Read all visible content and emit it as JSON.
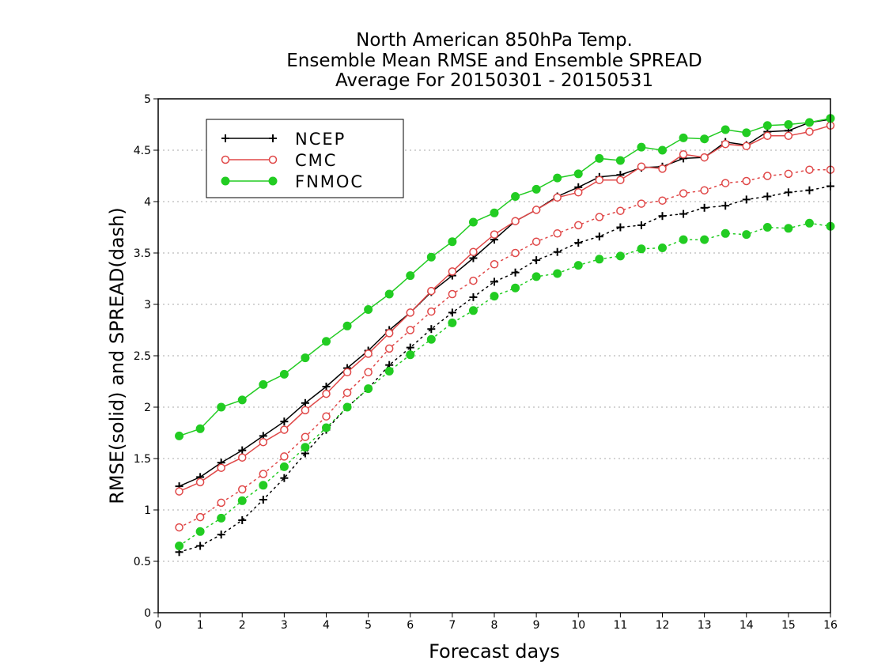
{
  "title": {
    "line1": "North American 850hPa Temp.",
    "line2": "Ensemble Mean RMSE and Ensemble SPREAD",
    "line3": "Average For 20150301 - 20150531"
  },
  "chart_data": {
    "type": "line",
    "xlabel": "Forecast days",
    "ylabel": "RMSE(solid) and SPREAD(dash)",
    "xlim": [
      0,
      16
    ],
    "ylim": [
      0,
      5
    ],
    "x_ticks": [
      0,
      1,
      2,
      3,
      4,
      5,
      6,
      7,
      8,
      9,
      10,
      11,
      12,
      13,
      14,
      15,
      16
    ],
    "y_ticks": [
      0,
      0.5,
      1,
      1.5,
      2,
      2.5,
      3,
      3.5,
      4,
      4.5,
      5
    ],
    "grid": "horizontal dotted",
    "legend_position": "top-left",
    "x": [
      0.5,
      1,
      1.5,
      2,
      2.5,
      3,
      3.5,
      4,
      4.5,
      5,
      5.5,
      6,
      6.5,
      7,
      7.5,
      8,
      8.5,
      9,
      9.5,
      10,
      10.5,
      11,
      11.5,
      12,
      12.5,
      13,
      13.5,
      14,
      14.5,
      15,
      15.5,
      16
    ],
    "series": [
      {
        "name": "NCEP",
        "color": "#000000",
        "marker": "plus",
        "rmse": [
          1.23,
          1.32,
          1.46,
          1.58,
          1.72,
          1.86,
          2.04,
          2.2,
          2.38,
          2.55,
          2.75,
          2.92,
          3.12,
          3.28,
          3.45,
          3.63,
          3.81,
          3.92,
          4.05,
          4.14,
          4.24,
          4.26,
          4.33,
          4.34,
          4.42,
          4.43,
          4.58,
          4.55,
          4.68,
          4.69,
          4.77,
          4.8
        ],
        "spread": [
          0.59,
          0.65,
          0.76,
          0.9,
          1.1,
          1.31,
          1.55,
          1.78,
          2.0,
          2.18,
          2.41,
          2.58,
          2.76,
          2.92,
          3.07,
          3.22,
          3.31,
          3.43,
          3.51,
          3.6,
          3.66,
          3.75,
          3.77,
          3.86,
          3.88,
          3.94,
          3.96,
          4.02,
          4.05,
          4.09,
          4.11,
          4.15
        ]
      },
      {
        "name": "CMC",
        "color": "#e04848",
        "marker": "open-circle",
        "rmse": [
          1.18,
          1.27,
          1.41,
          1.51,
          1.66,
          1.78,
          1.97,
          2.13,
          2.34,
          2.52,
          2.72,
          2.92,
          3.13,
          3.32,
          3.51,
          3.68,
          3.81,
          3.92,
          4.04,
          4.09,
          4.21,
          4.21,
          4.34,
          4.32,
          4.46,
          4.43,
          4.56,
          4.54,
          4.64,
          4.64,
          4.68,
          4.74
        ],
        "spread": [
          0.83,
          0.93,
          1.07,
          1.2,
          1.35,
          1.52,
          1.71,
          1.91,
          2.14,
          2.34,
          2.57,
          2.75,
          2.93,
          3.1,
          3.23,
          3.39,
          3.5,
          3.61,
          3.69,
          3.77,
          3.85,
          3.91,
          3.98,
          4.01,
          4.08,
          4.11,
          4.18,
          4.2,
          4.25,
          4.27,
          4.31,
          4.31
        ]
      },
      {
        "name": "FNMOC",
        "color": "#22cc22",
        "marker": "filled-circle",
        "rmse": [
          1.72,
          1.79,
          2.0,
          2.07,
          2.22,
          2.32,
          2.48,
          2.64,
          2.79,
          2.95,
          3.1,
          3.28,
          3.46,
          3.61,
          3.8,
          3.89,
          4.05,
          4.12,
          4.23,
          4.27,
          4.42,
          4.4,
          4.53,
          4.5,
          4.62,
          4.61,
          4.7,
          4.67,
          4.74,
          4.75,
          4.77,
          4.81
        ],
        "spread": [
          0.65,
          0.79,
          0.92,
          1.09,
          1.24,
          1.42,
          1.61,
          1.8,
          2.0,
          2.18,
          2.35,
          2.51,
          2.66,
          2.82,
          2.94,
          3.08,
          3.16,
          3.27,
          3.3,
          3.38,
          3.44,
          3.47,
          3.54,
          3.55,
          3.63,
          3.63,
          3.69,
          3.68,
          3.75,
          3.74,
          3.79,
          3.76
        ]
      }
    ]
  }
}
